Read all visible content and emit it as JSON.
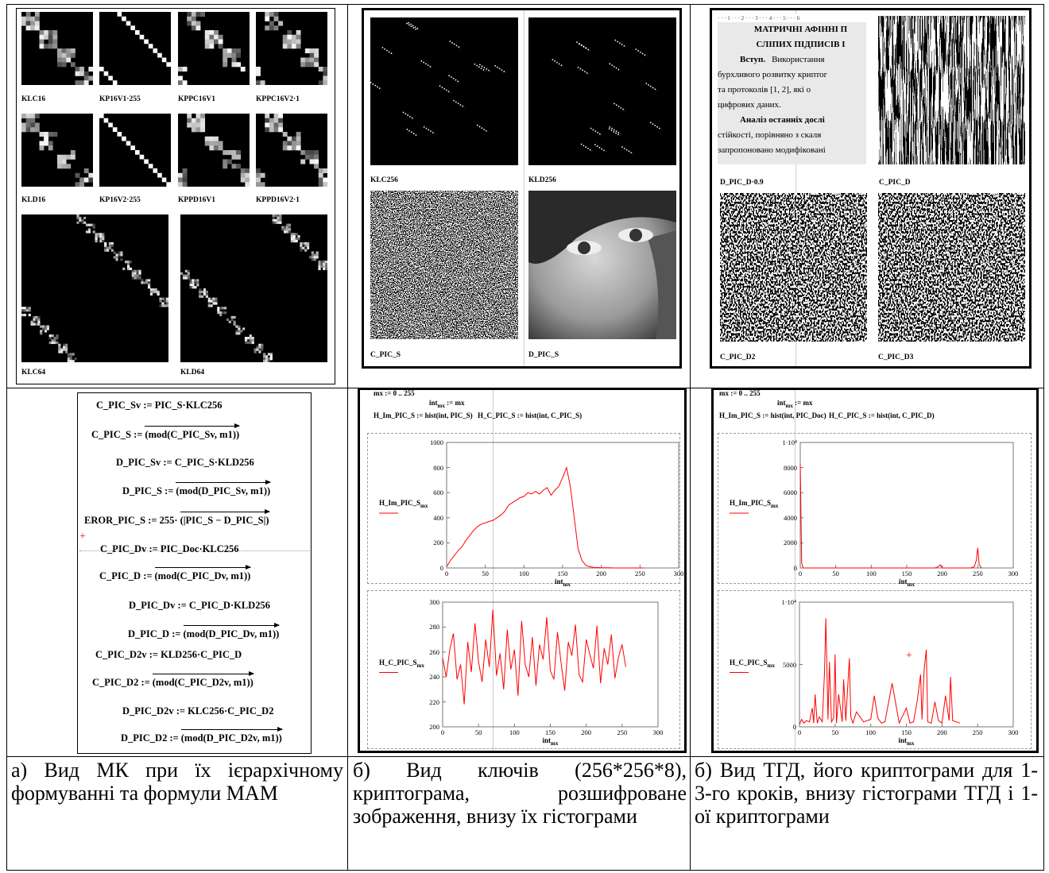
{
  "cell_a_images": {
    "labels": [
      "KLC16",
      "KP16V1·255",
      "KPPC16V1",
      "KPPC16V2·1",
      "KLD16",
      "KP16V2·255",
      "KPPD16V1",
      "KPPD16V2·1",
      "KLC64",
      "KLD64"
    ]
  },
  "cell_b_images": {
    "labels": [
      "KLC256",
      "KLD256",
      "C_PIC_S",
      "D_PIC_S"
    ]
  },
  "cell_c_images": {
    "document": {
      "ruler": "· · · 1 · · · 2 · · · 3 · · · 4 · · · 5 · · · 6",
      "lines": [
        {
          "text": "МАТРИЧНІ АФІННІ П",
          "style": "title"
        },
        {
          "text": "СЛІПИХ ПІДПИСІВ І",
          "style": "title"
        },
        {
          "lead": "Вступ.",
          "text": "Використання"
        },
        {
          "text": "бурхливого розвитку криптог"
        },
        {
          "text": "та протоколів [1, 2], які о"
        },
        {
          "text": "цифрових даних."
        },
        {
          "lead": "Аналіз останніх дослі"
        },
        {
          "text": "стійкості, порівняно з скаля"
        },
        {
          "text": "запропоновано модифіковані"
        }
      ]
    },
    "labels": [
      "D_PIC_D·0.9",
      "C_PIC_D",
      "C_PIC_D2",
      "C_PIC_D3"
    ]
  },
  "formulas": [
    {
      "text": "C_PIC_Sv := PIC_S·KLC256"
    },
    {
      "lhs": "C_PIC_S :=",
      "rhs": "(mod(C_PIC_Sv, m1))"
    },
    {
      "text": "D_PIC_Sv := C_PIC_S·KLD256"
    },
    {
      "lhs": "D_PIC_S :=",
      "rhs": "(mod(D_PIC_Sv, m1))"
    },
    {
      "lhs": "EROR_PIC_S := 255·",
      "rhs": "(|PIC_S − D_PIC_S|)"
    },
    {
      "text": "C_PIC_Dv := PIC_Doc·KLC256"
    },
    {
      "lhs": "C_PIC_D :=",
      "rhs": "(mod(C_PIC_Dv, m1))"
    },
    {
      "text": "D_PIC_Dv := C_PIC_D·KLD256"
    },
    {
      "lhs": "D_PIC_D :=",
      "rhs": "(mod(D_PIC_Dv, m1))"
    },
    {
      "text": "C_PIC_D2v := KLD256·C_PIC_D"
    },
    {
      "lhs": "C_PIC_D2 :=",
      "rhs": "(mod(C_PIC_D2v, m1))"
    },
    {
      "text": "D_PIC_D2v := KLC256·C_PIC_D2"
    },
    {
      "lhs": "D_PIC_D2 :=",
      "rhs": "(mod(D_PIC_D2v, m1))"
    }
  ],
  "hist_headers": [
    [
      [
        "mx := 0 .. 255"
      ],
      [
        "int",
        {
          "sub": "mx"
        },
        " := mx"
      ],
      [
        "H_Im_PIC_S := hist(int, PIC_S)"
      ],
      [
        "H_C_PIC_S := hist(int, C_PIC_S)"
      ]
    ],
    [
      [
        "mx := 0 .. 255"
      ],
      [
        "int",
        {
          "sub": "mx"
        },
        " := mx"
      ],
      [
        "H_Im_PIC_S := hist(int, PIC_Doc)"
      ],
      [
        "H_C_PIC_S := hist(int, C_PIC_D)"
      ]
    ]
  ],
  "chart_data": [
    {
      "type": "line",
      "y_label": [
        "H_Im_PIC_S",
        {
          "sub": "mx"
        }
      ],
      "x_label": [
        "int",
        {
          "sub": "mx"
        }
      ],
      "color": "#ff0000",
      "x": [
        0,
        5,
        10,
        15,
        20,
        25,
        30,
        35,
        40,
        45,
        50,
        55,
        60,
        65,
        70,
        75,
        80,
        85,
        90,
        95,
        100,
        105,
        110,
        115,
        120,
        125,
        130,
        135,
        140,
        145,
        150,
        155,
        160,
        165,
        170,
        175,
        180,
        185,
        190,
        195,
        200,
        205,
        210,
        215,
        220,
        225,
        230,
        235,
        240,
        245,
        250,
        255
      ],
      "values": [
        10,
        60,
        100,
        140,
        170,
        220,
        260,
        300,
        330,
        350,
        360,
        370,
        380,
        400,
        420,
        450,
        500,
        520,
        540,
        560,
        570,
        600,
        590,
        610,
        590,
        620,
        640,
        580,
        620,
        650,
        720,
        800,
        650,
        400,
        150,
        60,
        20,
        10,
        5,
        3,
        2,
        1,
        1,
        0,
        0,
        0,
        0,
        0,
        0,
        0,
        0,
        0
      ],
      "xlim": [
        0,
        300
      ],
      "ylim": [
        0,
        1000
      ],
      "xticks": [
        0,
        50,
        100,
        150,
        200,
        250,
        300
      ],
      "yticks": [
        0,
        200,
        400,
        600,
        800,
        1000
      ]
    },
    {
      "type": "line",
      "y_label": [
        "H_C_PIC_S",
        {
          "sub": "mx"
        }
      ],
      "x_label": [
        "int",
        {
          "sub": "mx"
        }
      ],
      "color": "#ff0000",
      "x": [
        0,
        5,
        10,
        15,
        20,
        25,
        30,
        35,
        40,
        45,
        50,
        55,
        60,
        65,
        70,
        75,
        80,
        85,
        90,
        95,
        100,
        105,
        110,
        115,
        120,
        125,
        130,
        135,
        140,
        145,
        150,
        155,
        160,
        165,
        170,
        175,
        180,
        185,
        190,
        195,
        200,
        205,
        210,
        215,
        220,
        225,
        230,
        235,
        240,
        245,
        250,
        255
      ],
      "values": [
        255,
        240,
        262,
        275,
        238,
        250,
        218,
        268,
        244,
        283,
        252,
        236,
        270,
        248,
        294,
        241,
        259,
        230,
        278,
        246,
        262,
        225,
        285,
        250,
        240,
        272,
        233,
        266,
        254,
        288,
        245,
        238,
        276,
        251,
        229,
        268,
        257,
        282,
        242,
        236,
        270,
        258,
        247,
        281,
        235,
        263,
        250,
        274,
        239,
        256,
        266,
        248
      ],
      "xlim": [
        0,
        300
      ],
      "ylim": [
        200,
        300
      ],
      "xticks": [
        0,
        50,
        100,
        150,
        200,
        250,
        300
      ],
      "yticks": [
        200,
        220,
        240,
        260,
        280,
        300
      ]
    },
    {
      "type": "line",
      "y_label": [
        "H_Im_PIC_S",
        {
          "sub": "mx"
        }
      ],
      "x_label": [
        "int",
        {
          "sub": "mx"
        }
      ],
      "color": "#ff0000",
      "x": [
        0,
        2,
        4,
        10,
        50,
        100,
        150,
        190,
        195,
        197,
        200,
        240,
        245,
        248,
        250,
        252,
        255
      ],
      "values": [
        8300,
        400,
        0,
        0,
        0,
        0,
        0,
        0,
        120,
        250,
        0,
        0,
        100,
        600,
        1600,
        300,
        0
      ],
      "xlim": [
        0,
        300
      ],
      "ylim": [
        0,
        10000
      ],
      "xticks": [
        0,
        50,
        100,
        150,
        200,
        250,
        300
      ],
      "yticks": [
        0,
        2000,
        4000,
        6000,
        8000,
        {
          "value": 10000,
          "label": "1·10⁴"
        }
      ]
    },
    {
      "type": "line",
      "y_label": [
        "H_C_PIC_S",
        {
          "sub": "mx"
        }
      ],
      "x_label": [
        "int",
        {
          "sub": "mx"
        }
      ],
      "color": "#ff0000",
      "x": [
        0,
        3,
        6,
        10,
        14,
        18,
        20,
        22,
        25,
        28,
        32,
        35,
        37,
        40,
        42,
        45,
        48,
        50,
        52,
        55,
        60,
        62,
        65,
        70,
        72,
        75,
        80,
        90,
        100,
        105,
        110,
        115,
        120,
        130,
        140,
        150,
        155,
        160,
        165,
        170,
        172,
        175,
        178,
        180,
        185,
        190,
        195,
        200,
        205,
        210,
        212,
        215,
        220,
        225
      ],
      "values": [
        200,
        600,
        300,
        500,
        400,
        1500,
        300,
        2600,
        300,
        800,
        400,
        4200,
        8700,
        600,
        5200,
        400,
        700,
        5800,
        300,
        2600,
        400,
        3800,
        500,
        5500,
        800,
        300,
        1200,
        400,
        600,
        2500,
        700,
        300,
        400,
        3500,
        300,
        1500,
        300,
        400,
        2000,
        4200,
        600,
        4600,
        6200,
        400,
        300,
        2000,
        500,
        300,
        2500,
        500,
        4000,
        500,
        400,
        300
      ],
      "xlim": [
        0,
        300
      ],
      "ylim": [
        0,
        10000
      ],
      "xticks": [
        0,
        50,
        100,
        150,
        200,
        250,
        300
      ],
      "yticks": [
        0,
        5000,
        {
          "value": 10000,
          "label": "1·10⁴"
        }
      ]
    }
  ],
  "captions": [
    "а) Вид МК при їх ієрархічному формуванні та формули МАМ",
    "б) Вид ключів (256*256*8), криптограма, розшифроване зображення, внизу їх гістограми",
    "б) Вид ТГД, його криптограми для 1-3-го кроків, внизу гістограми ТГД і 1-ої криптограми"
  ]
}
